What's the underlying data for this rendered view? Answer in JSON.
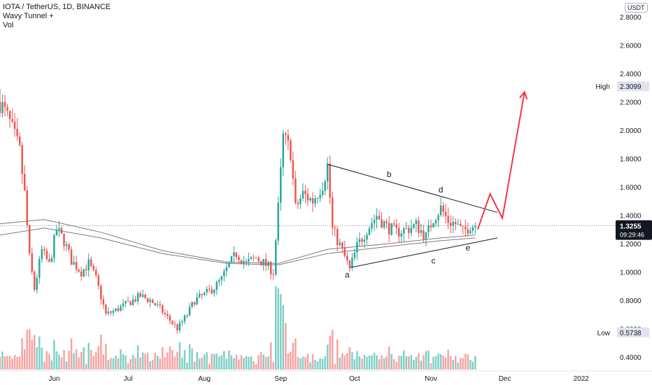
{
  "legend": {
    "title": "IOTA / TetherUS, 1D, BINANCE",
    "indicator1": "Wavy Tunnel +",
    "indicator2": "Vol"
  },
  "price_axis": {
    "unit": "USDT",
    "ticks": [
      "2.8000",
      "2.6000",
      "2.4000",
      "2.2000",
      "2.0000",
      "1.8000",
      "1.6000",
      "1.4000",
      "1.2000",
      "1.0000",
      "0.8000",
      "0.6000",
      "0.4000"
    ],
    "high_label": "High",
    "high_value": "2.3099",
    "low_label": "Low",
    "low_value": "0.5738",
    "last_price": "1.3255",
    "countdown": "09:29:46"
  },
  "time_axis": {
    "labels": [
      "Jun",
      "Jul",
      "Aug",
      "Sep",
      "Oct",
      "Nov",
      "Dec",
      "2022"
    ]
  },
  "annotations": [
    "a",
    "b",
    "c",
    "d",
    "e"
  ],
  "colors": {
    "up": "#26a69a",
    "down": "#ef5350",
    "vol_up": "#7fcfc6",
    "vol_down": "#f5a3a1",
    "tunnel": "#7a7a7a",
    "drawing": "#131722",
    "forecast": "#f23645",
    "axis_text": "#131722",
    "price_tag_bg": "#131722"
  },
  "chart_data": {
    "type": "candlestick",
    "title": "IOTA / TetherUS, 1D, BINANCE",
    "ylim": [
      0.35,
      2.9
    ],
    "y_ticks": [
      2.8,
      2.6,
      2.4,
      2.2,
      2.0,
      1.8,
      1.6,
      1.4,
      1.2,
      1.0,
      0.8,
      0.6,
      0.4
    ],
    "x_labels": [
      {
        "label": "Jun",
        "date": "2021-06-01"
      },
      {
        "label": "Jul",
        "date": "2021-07-01"
      },
      {
        "label": "Aug",
        "date": "2021-08-01"
      },
      {
        "label": "Sep",
        "date": "2021-09-01"
      },
      {
        "label": "Oct",
        "date": "2021-10-01"
      },
      {
        "label": "Nov",
        "date": "2021-11-01"
      },
      {
        "label": "Dec",
        "date": "2021-12-01"
      },
      {
        "label": "2022",
        "date": "2022-01-01"
      }
    ],
    "x_range": [
      "2021-05-10",
      "2022-01-15"
    ],
    "high": 2.3099,
    "low": 0.5738,
    "last": 1.3255,
    "price_path": [
      [
        "2021-05-10",
        2.2
      ],
      [
        "2021-05-14",
        2.05
      ],
      [
        "2021-05-18",
        1.85
      ],
      [
        "2021-05-20",
        1.55
      ],
      [
        "2021-05-22",
        1.1
      ],
      [
        "2021-05-24",
        0.88
      ],
      [
        "2021-05-27",
        1.15
      ],
      [
        "2021-05-30",
        1.05
      ],
      [
        "2021-06-02",
        1.3
      ],
      [
        "2021-06-05",
        1.22
      ],
      [
        "2021-06-08",
        1.08
      ],
      [
        "2021-06-12",
        1.0
      ],
      [
        "2021-06-15",
        1.06
      ],
      [
        "2021-06-18",
        0.95
      ],
      [
        "2021-06-22",
        0.7
      ],
      [
        "2021-06-26",
        0.73
      ],
      [
        "2021-07-01",
        0.78
      ],
      [
        "2021-07-06",
        0.83
      ],
      [
        "2021-07-10",
        0.8
      ],
      [
        "2021-07-14",
        0.74
      ],
      [
        "2021-07-18",
        0.66
      ],
      [
        "2021-07-21",
        0.6
      ],
      [
        "2021-07-25",
        0.7
      ],
      [
        "2021-07-28",
        0.8
      ],
      [
        "2021-08-01",
        0.84
      ],
      [
        "2021-08-05",
        0.89
      ],
      [
        "2021-08-08",
        0.95
      ],
      [
        "2021-08-11",
        1.05
      ],
      [
        "2021-08-14",
        1.13
      ],
      [
        "2021-08-18",
        1.06
      ],
      [
        "2021-08-22",
        1.1
      ],
      [
        "2021-08-26",
        1.05
      ],
      [
        "2021-08-29",
        1.0
      ],
      [
        "2021-08-31",
        1.45
      ],
      [
        "2021-09-02",
        1.95
      ],
      [
        "2021-09-05",
        1.85
      ],
      [
        "2021-09-07",
        1.45
      ],
      [
        "2021-09-10",
        1.55
      ],
      [
        "2021-09-14",
        1.5
      ],
      [
        "2021-09-18",
        1.62
      ],
      [
        "2021-09-20",
        1.75
      ],
      [
        "2021-09-22",
        1.3
      ],
      [
        "2021-09-26",
        1.15
      ],
      [
        "2021-09-29",
        1.02
      ],
      [
        "2021-10-02",
        1.18
      ],
      [
        "2021-10-06",
        1.3
      ],
      [
        "2021-10-10",
        1.4
      ],
      [
        "2021-10-14",
        1.32
      ],
      [
        "2021-10-18",
        1.28
      ],
      [
        "2021-10-22",
        1.3
      ],
      [
        "2021-10-26",
        1.33
      ],
      [
        "2021-10-30",
        1.25
      ],
      [
        "2021-11-02",
        1.38
      ],
      [
        "2021-11-05",
        1.45
      ],
      [
        "2021-11-08",
        1.36
      ],
      [
        "2021-11-11",
        1.34
      ],
      [
        "2021-11-14",
        1.28
      ],
      [
        "2021-11-17",
        1.33
      ],
      [
        "2021-11-19",
        1.3255
      ]
    ],
    "tunnel_upper": [
      [
        "2021-05-10",
        1.34
      ],
      [
        "2021-05-28",
        1.37
      ],
      [
        "2021-06-20",
        1.28
      ],
      [
        "2021-07-15",
        1.15
      ],
      [
        "2021-08-10",
        1.07
      ],
      [
        "2021-08-31",
        1.06
      ],
      [
        "2021-09-20",
        1.16
      ],
      [
        "2021-10-15",
        1.2
      ],
      [
        "2021-11-05",
        1.24
      ],
      [
        "2021-11-19",
        1.26
      ]
    ],
    "tunnel_lower": [
      [
        "2021-05-10",
        1.26
      ],
      [
        "2021-05-28",
        1.31
      ],
      [
        "2021-06-20",
        1.24
      ],
      [
        "2021-07-15",
        1.13
      ],
      [
        "2021-08-10",
        1.06
      ],
      [
        "2021-08-31",
        1.05
      ],
      [
        "2021-09-20",
        1.13
      ],
      [
        "2021-10-15",
        1.18
      ],
      [
        "2021-11-05",
        1.22
      ],
      [
        "2021-11-19",
        1.24
      ]
    ],
    "triangle": {
      "upper": [
        [
          "2021-09-20",
          1.76
        ],
        [
          "2021-11-28",
          1.42
        ]
      ],
      "lower": [
        [
          "2021-09-29",
          1.03
        ],
        [
          "2021-11-28",
          1.24
        ]
      ]
    },
    "wave_labels": [
      {
        "label": "a",
        "date": "2021-09-28",
        "price": 0.96
      },
      {
        "label": "b",
        "date": "2021-10-15",
        "price": 1.67
      },
      {
        "label": "c",
        "date": "2021-11-02",
        "price": 1.06
      },
      {
        "label": "d",
        "date": "2021-11-05",
        "price": 1.56
      },
      {
        "label": "e",
        "date": "2021-11-16",
        "price": 1.15
      }
    ],
    "forecast_path": [
      [
        "2021-11-20",
        1.3
      ],
      [
        "2021-11-25",
        1.55
      ],
      [
        "2021-11-30",
        1.38
      ],
      [
        "2021-12-09",
        2.27
      ]
    ]
  }
}
